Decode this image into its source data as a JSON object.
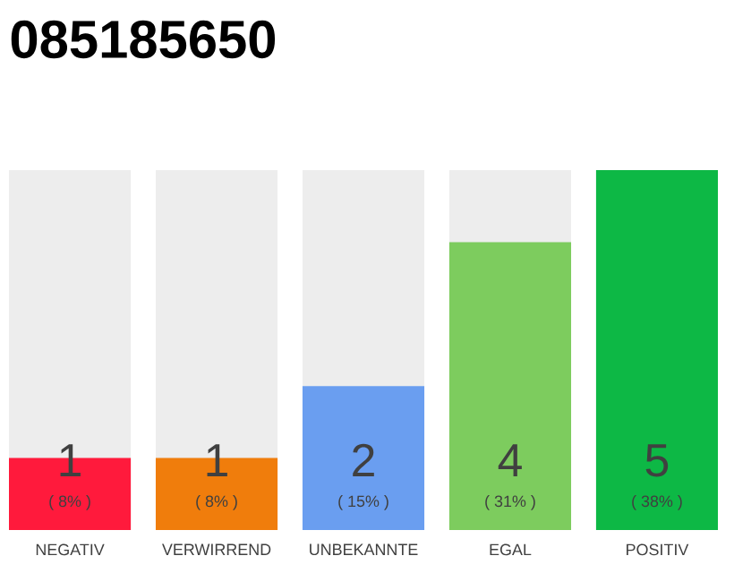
{
  "chart_data": {
    "type": "bar",
    "title": "085185650",
    "categories": [
      "NEGATIV",
      "VERWIRREND",
      "UNBEKANNTE",
      "EGAL",
      "POSITIV"
    ],
    "values": [
      1,
      1,
      2,
      4,
      5
    ],
    "colors": [
      "#ff1a3c",
      "#f07d0c",
      "#6a9ef0",
      "#7dcc5e",
      "#0db845"
    ],
    "ylim": [
      0,
      5
    ],
    "data_labels": true,
    "tick_labels": "x",
    "annotations": [
      "( 8% )",
      "( 8% )",
      "( 15% )",
      "( 31% )",
      "( 38% )"
    ]
  }
}
